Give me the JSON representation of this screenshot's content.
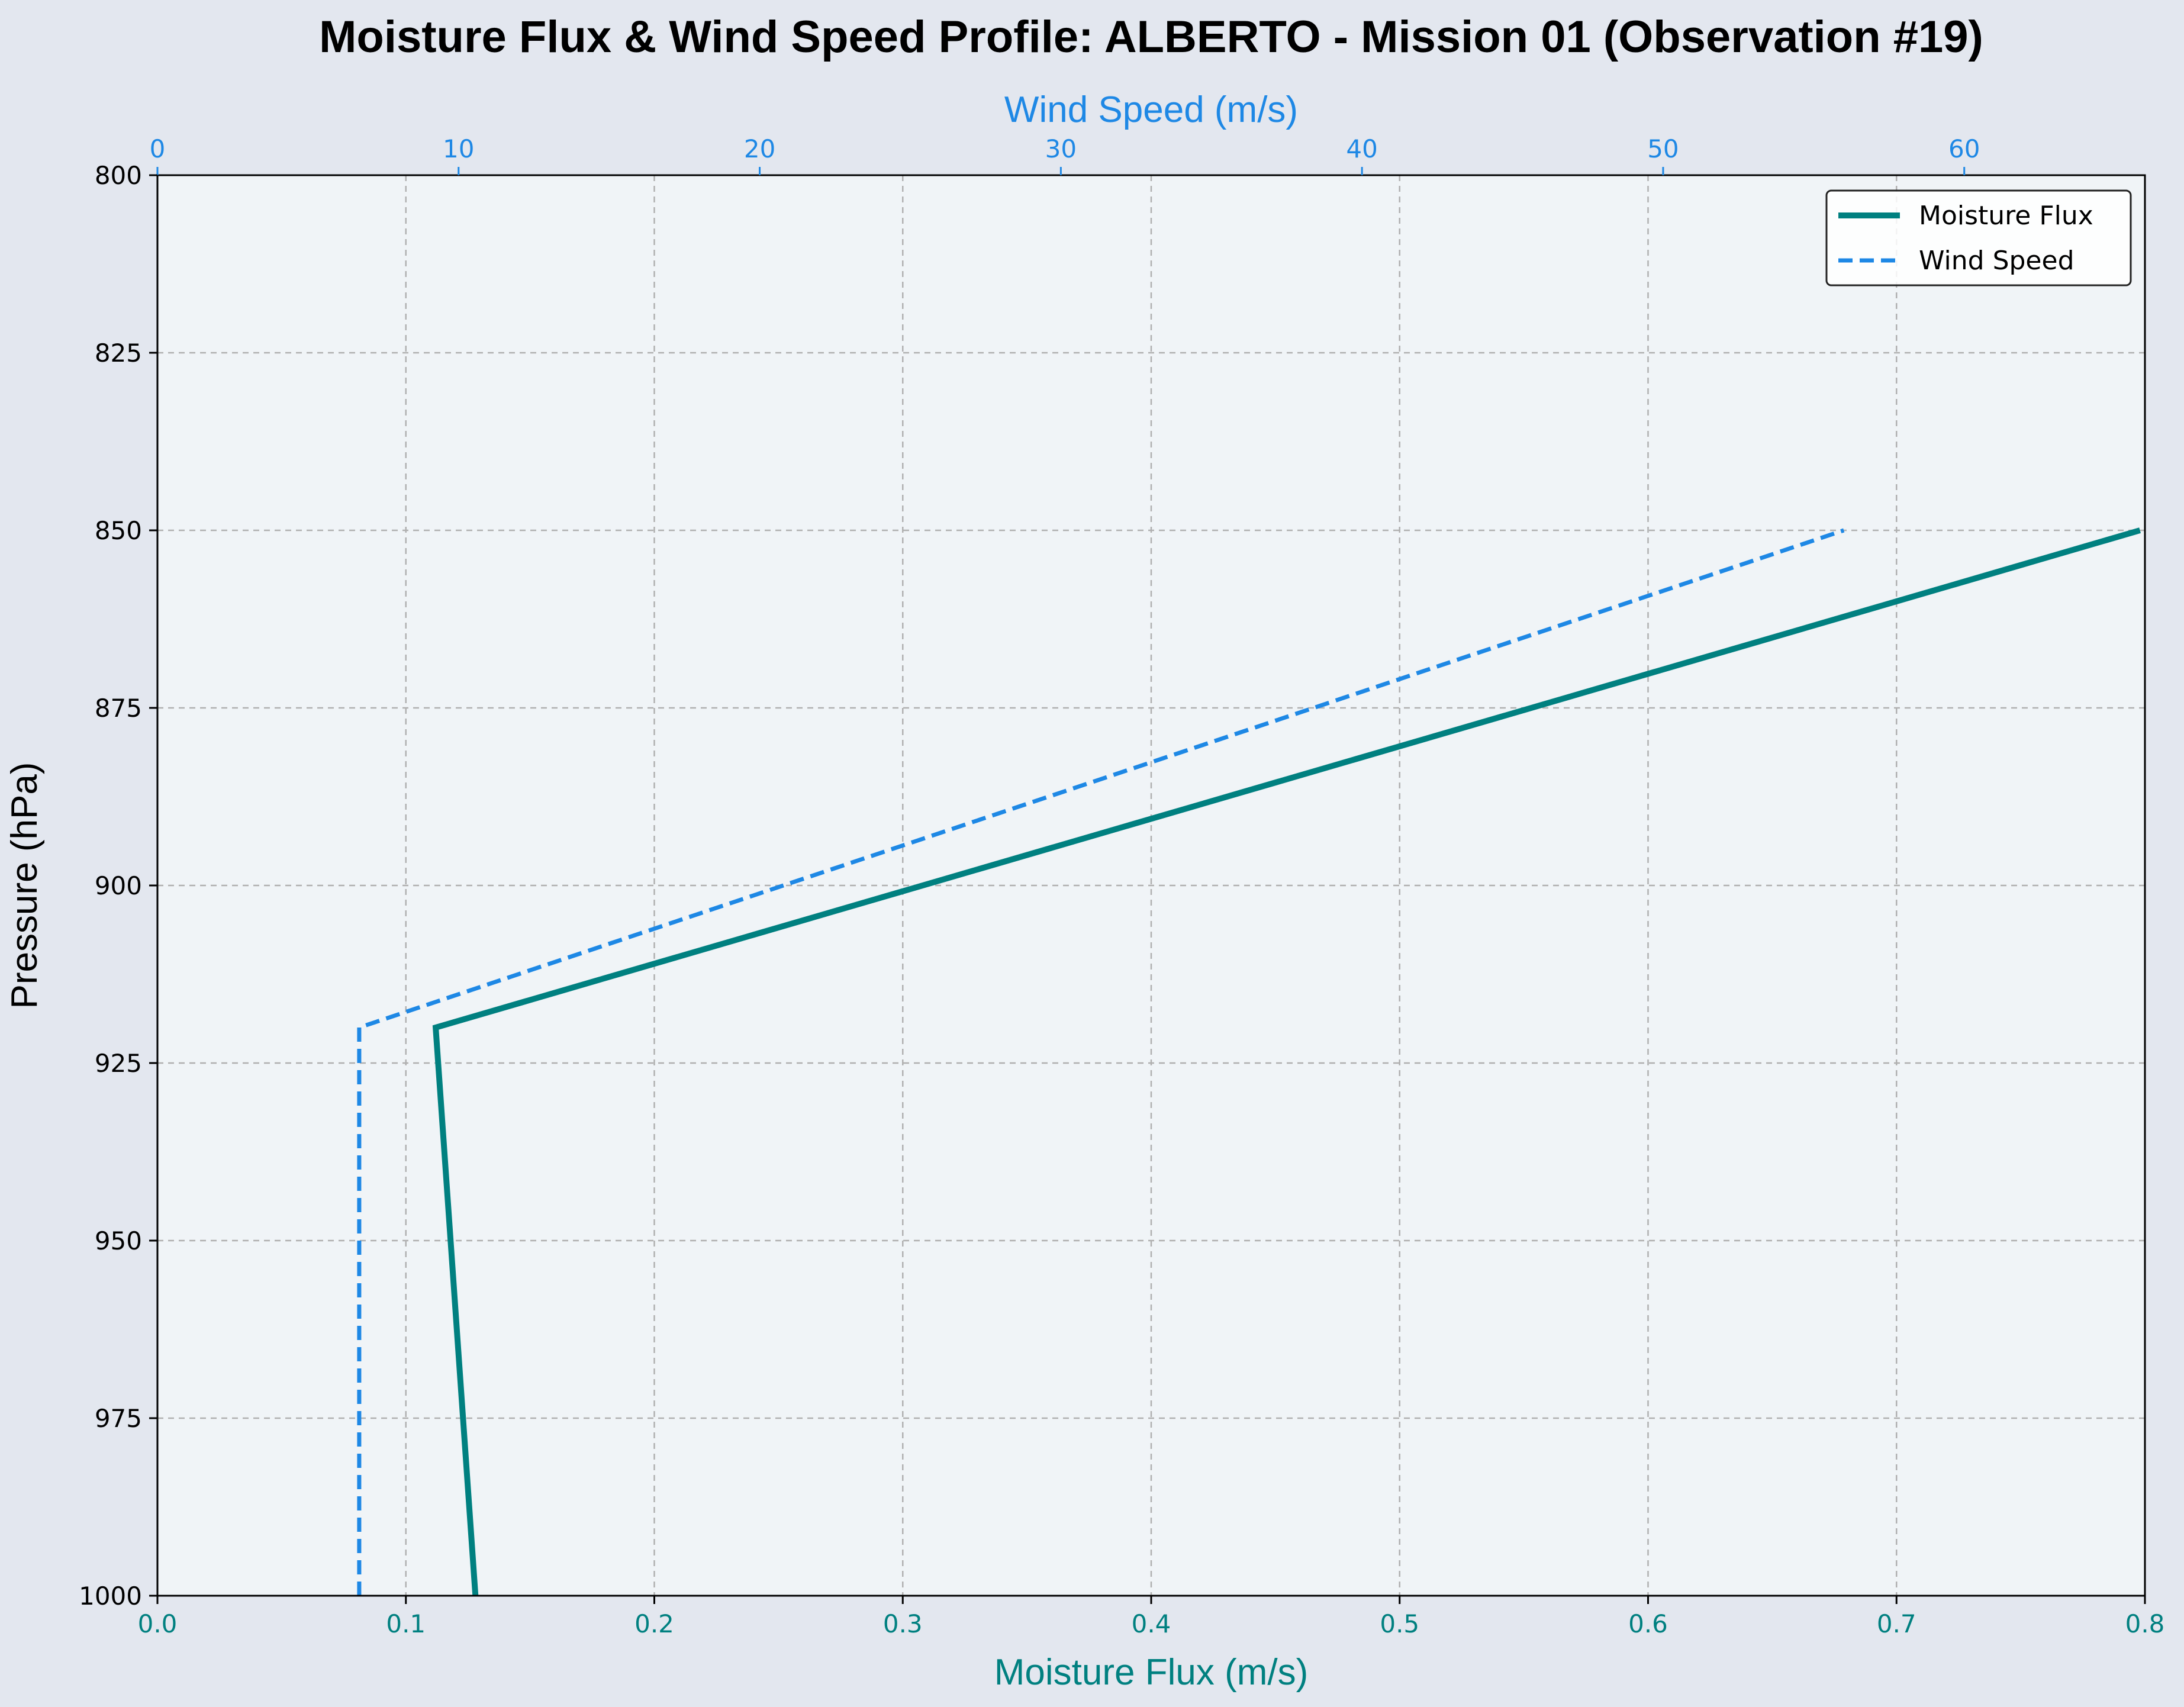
{
  "chart_data": {
    "type": "line",
    "title": "Moisture Flux & Wind Speed Profile: ALBERTO - Mission 01 (Observation #19)",
    "xlabel": "Moisture Flux (m/s)",
    "x2label": "Wind Speed (m/s)",
    "ylabel": "Pressure (hPa)",
    "xlim": [
      0.0,
      0.8
    ],
    "x2lim": [
      0,
      66
    ],
    "ylim": [
      1000,
      800
    ],
    "y_inverted": true,
    "grid": true,
    "legend_position": "top-right",
    "x_ticks": [
      "0.0",
      "0.1",
      "0.2",
      "0.3",
      "0.4",
      "0.5",
      "0.6",
      "0.7",
      "0.8"
    ],
    "x2_ticks": [
      "0",
      "10",
      "20",
      "30",
      "40",
      "50",
      "60"
    ],
    "y_ticks": [
      "800",
      "825",
      "850",
      "875",
      "900",
      "925",
      "950",
      "975",
      "1000"
    ],
    "series": [
      {
        "name": "Moisture Flux",
        "axis": "bottom",
        "color": "#008080",
        "style": "solid",
        "points": [
          [
            0.128,
            1000
          ],
          [
            0.112,
            920
          ],
          [
            0.798,
            850
          ]
        ]
      },
      {
        "name": "Wind Speed",
        "axis": "top",
        "color": "#1e88e5",
        "style": "dashed",
        "points": [
          [
            6.7,
            1000
          ],
          [
            6.7,
            920
          ],
          [
            56.0,
            850
          ]
        ]
      }
    ],
    "colors": {
      "figure_bg": "#e3e7ef",
      "plot_bg": "#f0f4f7",
      "bottom_axis": "#008080",
      "top_axis": "#1e88e5",
      "grid": "#b0b0b0"
    }
  }
}
